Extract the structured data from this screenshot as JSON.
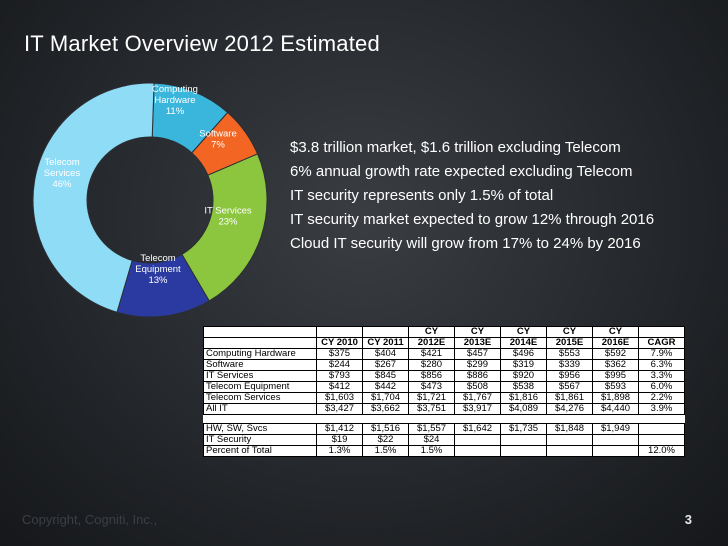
{
  "slide": {
    "title": "IT Market Overview  2012 Estimated",
    "footer": "Copyright, Cogniti, Inc.,",
    "page_number": "3"
  },
  "bullets": [
    "$3.8 trillion market, $1.6 trillion excluding Telecom",
    "6% annual growth rate expected excluding Telecom",
    "IT security represents only 1.5% of total",
    "IT security market expected to grow 12% through 2016",
    "Cloud IT security will grow from 17% to 24% by 2016"
  ],
  "chart_data": {
    "type": "pie",
    "title": "",
    "categories": [
      "Computing Hardware",
      "Software",
      "IT Services",
      "Telecom Equipment",
      "Telecom Services"
    ],
    "values": [
      11,
      7,
      23,
      13,
      46
    ],
    "units": "%",
    "label_lines": [
      [
        "Computing",
        "Hardware",
        "11%"
      ],
      [
        "Software",
        "7%"
      ],
      [
        "IT Services",
        "23%"
      ],
      [
        "Telecom",
        "Equipment",
        "13%"
      ],
      [
        "Telecom",
        "Services",
        "46%"
      ]
    ],
    "colors": [
      "#3ab6dc",
      "#f26522",
      "#8cc63f",
      "#2a3aa0",
      "#8fdcf7"
    ]
  },
  "table": {
    "headers": [
      [
        "",
        "CY 2010",
        "CY 2011",
        "CY 2012E",
        "CY 2013E",
        "CY 2014E",
        "CY 2015E",
        "CY 2016E",
        "CAGR"
      ]
    ],
    "header_top": [
      "",
      "",
      "",
      "CY",
      "CY",
      "CY",
      "CY",
      "CY",
      ""
    ],
    "header_bottom": [
      "",
      "CY 2010",
      "CY 2011",
      "2012E",
      "2013E",
      "2014E",
      "2015E",
      "2016E",
      "CAGR"
    ],
    "rows": [
      [
        "Computing Hardware",
        "$375",
        "$404",
        "$421",
        "$457",
        "$496",
        "$553",
        "$592",
        "7.9%"
      ],
      [
        "Software",
        "$244",
        "$267",
        "$280",
        "$299",
        "$319",
        "$339",
        "$362",
        "6.3%"
      ],
      [
        "IT Services",
        "$793",
        "$845",
        "$856",
        "$886",
        "$920",
        "$956",
        "$995",
        "3.3%"
      ],
      [
        "Telecom Equipment",
        "$412",
        "$442",
        "$473",
        "$508",
        "$538",
        "$567",
        "$593",
        "6.0%"
      ],
      [
        "Telecom Services",
        "$1,603",
        "$1,704",
        "$1,721",
        "$1,767",
        "$1,816",
        "$1,861",
        "$1,898",
        "2.2%"
      ],
      [
        "All IT",
        "$3,427",
        "$3,662",
        "$3,751",
        "$3,917",
        "$4,089",
        "$4,276",
        "$4,440",
        "3.9%"
      ]
    ],
    "rows2": [
      [
        "HW, SW, Svcs",
        "$1,412",
        "$1,516",
        "$1,557",
        "$1,642",
        "$1,735",
        "$1,848",
        "$1,949",
        ""
      ],
      [
        "IT Security",
        "$19",
        "$22",
        "$24",
        "",
        "",
        "",
        "",
        ""
      ],
      [
        "Percent of Total",
        "1.3%",
        "1.5%",
        "1.5%",
        "",
        "",
        "",
        "",
        "12.0%"
      ]
    ]
  }
}
